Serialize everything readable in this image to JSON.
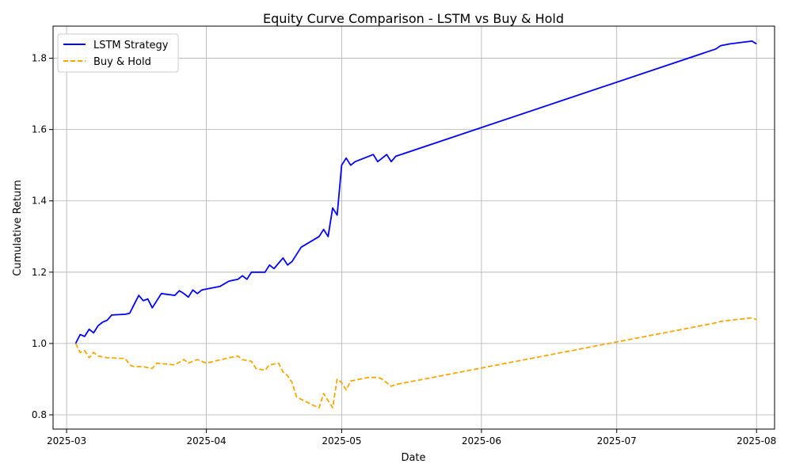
{
  "chart_data": {
    "type": "line",
    "title": "Equity Curve Comparison - LSTM vs Buy & Hold",
    "xlabel": "Date",
    "ylabel": "Cumulative Return",
    "grid": true,
    "legend_position": "top-left",
    "xlim": [
      "2025-02-26",
      "2025-08-05"
    ],
    "ylim": [
      0.76,
      1.89
    ],
    "x_ticks": [
      "2025-03",
      "2025-04",
      "2025-05",
      "2025-06",
      "2025-07",
      "2025-08"
    ],
    "y_ticks": [
      0.8,
      1.0,
      1.2,
      1.4,
      1.6,
      1.8
    ],
    "series": [
      {
        "name": "LSTM Strategy",
        "color": "#0000ff",
        "style": "solid",
        "points": [
          [
            "2025-03-03",
            1.0
          ],
          [
            "2025-03-04",
            1.025
          ],
          [
            "2025-03-05",
            1.02
          ],
          [
            "2025-03-06",
            1.04
          ],
          [
            "2025-03-07",
            1.03
          ],
          [
            "2025-03-08",
            1.05
          ],
          [
            "2025-03-09",
            1.06
          ],
          [
            "2025-03-10",
            1.065
          ],
          [
            "2025-03-11",
            1.08
          ],
          [
            "2025-03-14",
            1.082
          ],
          [
            "2025-03-15",
            1.085
          ],
          [
            "2025-03-16",
            1.11
          ],
          [
            "2025-03-17",
            1.135
          ],
          [
            "2025-03-18",
            1.12
          ],
          [
            "2025-03-19",
            1.125
          ],
          [
            "2025-03-20",
            1.1
          ],
          [
            "2025-03-21",
            1.12
          ],
          [
            "2025-03-22",
            1.14
          ],
          [
            "2025-03-25",
            1.135
          ],
          [
            "2025-03-26",
            1.148
          ],
          [
            "2025-03-27",
            1.14
          ],
          [
            "2025-03-28",
            1.13
          ],
          [
            "2025-03-29",
            1.15
          ],
          [
            "2025-03-30",
            1.14
          ],
          [
            "2025-03-31",
            1.15
          ],
          [
            "2025-04-04",
            1.16
          ],
          [
            "2025-04-06",
            1.175
          ],
          [
            "2025-04-08",
            1.18
          ],
          [
            "2025-04-09",
            1.19
          ],
          [
            "2025-04-10",
            1.18
          ],
          [
            "2025-04-11",
            1.2
          ],
          [
            "2025-04-14",
            1.2
          ],
          [
            "2025-04-15",
            1.22
          ],
          [
            "2025-04-16",
            1.21
          ],
          [
            "2025-04-17",
            1.225
          ],
          [
            "2025-04-18",
            1.24
          ],
          [
            "2025-04-19",
            1.22
          ],
          [
            "2025-04-20",
            1.23
          ],
          [
            "2025-04-21",
            1.25
          ],
          [
            "2025-04-22",
            1.27
          ],
          [
            "2025-04-26",
            1.3
          ],
          [
            "2025-04-27",
            1.32
          ],
          [
            "2025-04-28",
            1.3
          ],
          [
            "2025-04-29",
            1.38
          ],
          [
            "2025-04-30",
            1.36
          ],
          [
            "2025-05-01",
            1.5
          ],
          [
            "2025-05-02",
            1.52
          ],
          [
            "2025-05-03",
            1.5
          ],
          [
            "2025-05-04",
            1.51
          ],
          [
            "2025-05-08",
            1.53
          ],
          [
            "2025-05-09",
            1.51
          ],
          [
            "2025-05-10",
            1.52
          ],
          [
            "2025-05-11",
            1.53
          ],
          [
            "2025-05-12",
            1.51
          ],
          [
            "2025-05-13",
            1.525
          ],
          [
            "2025-07-23",
            1.826
          ],
          [
            "2025-07-24",
            1.835
          ],
          [
            "2025-07-26",
            1.84
          ],
          [
            "2025-07-31",
            1.848
          ],
          [
            "2025-08-01",
            1.84
          ]
        ]
      },
      {
        "name": "Buy & Hold",
        "color": "#ffa500",
        "style": "dashed",
        "points": [
          [
            "2025-03-03",
            1.0
          ],
          [
            "2025-03-04",
            0.975
          ],
          [
            "2025-03-05",
            0.98
          ],
          [
            "2025-03-06",
            0.96
          ],
          [
            "2025-03-07",
            0.975
          ],
          [
            "2025-03-08",
            0.965
          ],
          [
            "2025-03-10",
            0.96
          ],
          [
            "2025-03-14",
            0.958
          ],
          [
            "2025-03-15",
            0.94
          ],
          [
            "2025-03-16",
            0.935
          ],
          [
            "2025-03-18",
            0.935
          ],
          [
            "2025-03-20",
            0.93
          ],
          [
            "2025-03-21",
            0.945
          ],
          [
            "2025-03-25",
            0.94
          ],
          [
            "2025-03-27",
            0.955
          ],
          [
            "2025-03-28",
            0.945
          ],
          [
            "2025-03-30",
            0.955
          ],
          [
            "2025-04-01",
            0.945
          ],
          [
            "2025-04-06",
            0.96
          ],
          [
            "2025-04-08",
            0.965
          ],
          [
            "2025-04-09",
            0.955
          ],
          [
            "2025-04-11",
            0.95
          ],
          [
            "2025-04-12",
            0.93
          ],
          [
            "2025-04-14",
            0.925
          ],
          [
            "2025-04-15",
            0.94
          ],
          [
            "2025-04-17",
            0.945
          ],
          [
            "2025-04-18",
            0.92
          ],
          [
            "2025-04-19",
            0.91
          ],
          [
            "2025-04-20",
            0.89
          ],
          [
            "2025-04-21",
            0.85
          ],
          [
            "2025-04-25",
            0.825
          ],
          [
            "2025-04-26",
            0.82
          ],
          [
            "2025-04-27",
            0.86
          ],
          [
            "2025-04-28",
            0.84
          ],
          [
            "2025-04-29",
            0.82
          ],
          [
            "2025-04-30",
            0.9
          ],
          [
            "2025-05-01",
            0.89
          ],
          [
            "2025-05-02",
            0.87
          ],
          [
            "2025-05-03",
            0.895
          ],
          [
            "2025-05-07",
            0.905
          ],
          [
            "2025-05-09",
            0.905
          ],
          [
            "2025-05-10",
            0.9
          ],
          [
            "2025-05-11",
            0.89
          ],
          [
            "2025-05-12",
            0.88
          ],
          [
            "2025-05-13",
            0.885
          ],
          [
            "2025-07-23",
            1.058
          ],
          [
            "2025-07-24",
            1.062
          ],
          [
            "2025-07-26",
            1.065
          ],
          [
            "2025-07-31",
            1.072
          ],
          [
            "2025-08-01",
            1.067
          ]
        ]
      }
    ]
  }
}
